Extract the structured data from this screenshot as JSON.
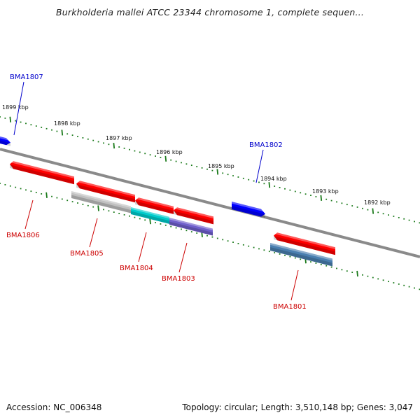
{
  "title": "Burkholderia mallei ATCC 23344 chromosome 1, complete sequen...",
  "footer": {
    "accession": "Accession: NC_006348",
    "summary": "Topology: circular; Length: 3,510,148 bp; Genes: 3,047"
  },
  "colors": {
    "backbone": "#808080",
    "ticks": "#1a7a1a",
    "forward_label": "#0000cc",
    "reverse_label": "#cc0000"
  },
  "ticks": [
    {
      "label": "1899 kbp"
    },
    {
      "label": "1898 kbp"
    },
    {
      "label": "1897 kbp"
    },
    {
      "label": "1896 kbp"
    },
    {
      "label": "1895 kbp"
    },
    {
      "label": "1894 kbp"
    },
    {
      "label": "1893 kbp"
    },
    {
      "label": "1892 kbp"
    }
  ],
  "genes": [
    {
      "id": "BMA1807",
      "strand": "forward",
      "color": "#0000ff"
    },
    {
      "id": "BMA1802",
      "strand": "forward",
      "color": "#0000ff"
    },
    {
      "id": "BMA1806",
      "strand": "reverse",
      "color": "#ff0000"
    },
    {
      "id": "BMA1805",
      "strand": "reverse",
      "color": "#ff0000"
    },
    {
      "id": "BMA1804",
      "strand": "reverse",
      "color": "#ff0000"
    },
    {
      "id": "BMA1803",
      "strand": "reverse",
      "color": "#ff0000"
    },
    {
      "id": "BMA1801",
      "strand": "reverse",
      "color": "#ff0000"
    }
  ],
  "features": [
    {
      "name": "grey-feature",
      "color": "#c0c0c0"
    },
    {
      "name": "cyan-feature",
      "color": "#00cccc"
    },
    {
      "name": "purple-feature",
      "color": "#7060cc"
    },
    {
      "name": "steelblue-feature",
      "color": "#4a7fb0"
    }
  ]
}
